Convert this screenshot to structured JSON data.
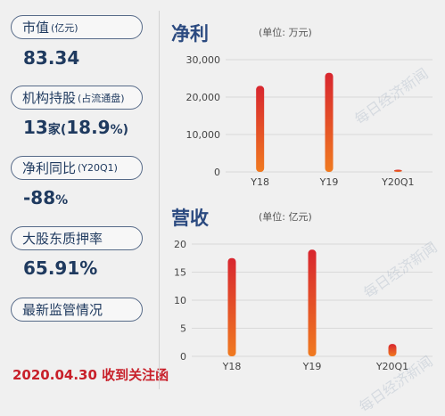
{
  "left_panel": {
    "metrics": [
      {
        "label": "市值",
        "sub": "(亿元)",
        "value_main": "83.34",
        "value_small": ""
      },
      {
        "label": "机构持股",
        "sub": "(占流通盘)",
        "value_main": "13",
        "value_small": "家(",
        "value_main2": "18.9",
        "value_small2": "%)"
      },
      {
        "label": "净利同比",
        "sub": "(Y20Q1)",
        "value_main": "-88",
        "value_small": "%"
      },
      {
        "label": "大股东质押率",
        "sub": "",
        "value_main": "65.91%",
        "value_small": ""
      },
      {
        "label": "最新监管情况",
        "sub": ""
      }
    ],
    "notice": "2020.04.30 收到关注函"
  },
  "watermark": "每日经济新闻",
  "colors": {
    "bar_top": "#d8262f",
    "bar_bottom": "#f07a20",
    "title": "#2b4a80",
    "notice": "#c8202a"
  },
  "chart_data": [
    {
      "type": "bar",
      "title": "净利",
      "unit_label": "(单位: 万元)",
      "categories": [
        "Y18",
        "Y19",
        "Y20Q1"
      ],
      "values": [
        23000,
        26500,
        600
      ],
      "yticks": [
        0,
        10000,
        20000,
        30000
      ],
      "ytick_labels": [
        "0",
        "10,000",
        "20,000",
        "30,000"
      ],
      "ylim": [
        0,
        30000
      ],
      "grid": true
    },
    {
      "type": "bar",
      "title": "营收",
      "unit_label": "(单位: 亿元)",
      "categories": [
        "Y18",
        "Y19",
        "Y20Q1"
      ],
      "values": [
        17.5,
        19,
        2.2
      ],
      "yticks": [
        0,
        5,
        10,
        15,
        20
      ],
      "ytick_labels": [
        "0",
        "5",
        "10",
        "15",
        "20"
      ],
      "ylim": [
        0,
        20
      ],
      "grid": true
    }
  ]
}
